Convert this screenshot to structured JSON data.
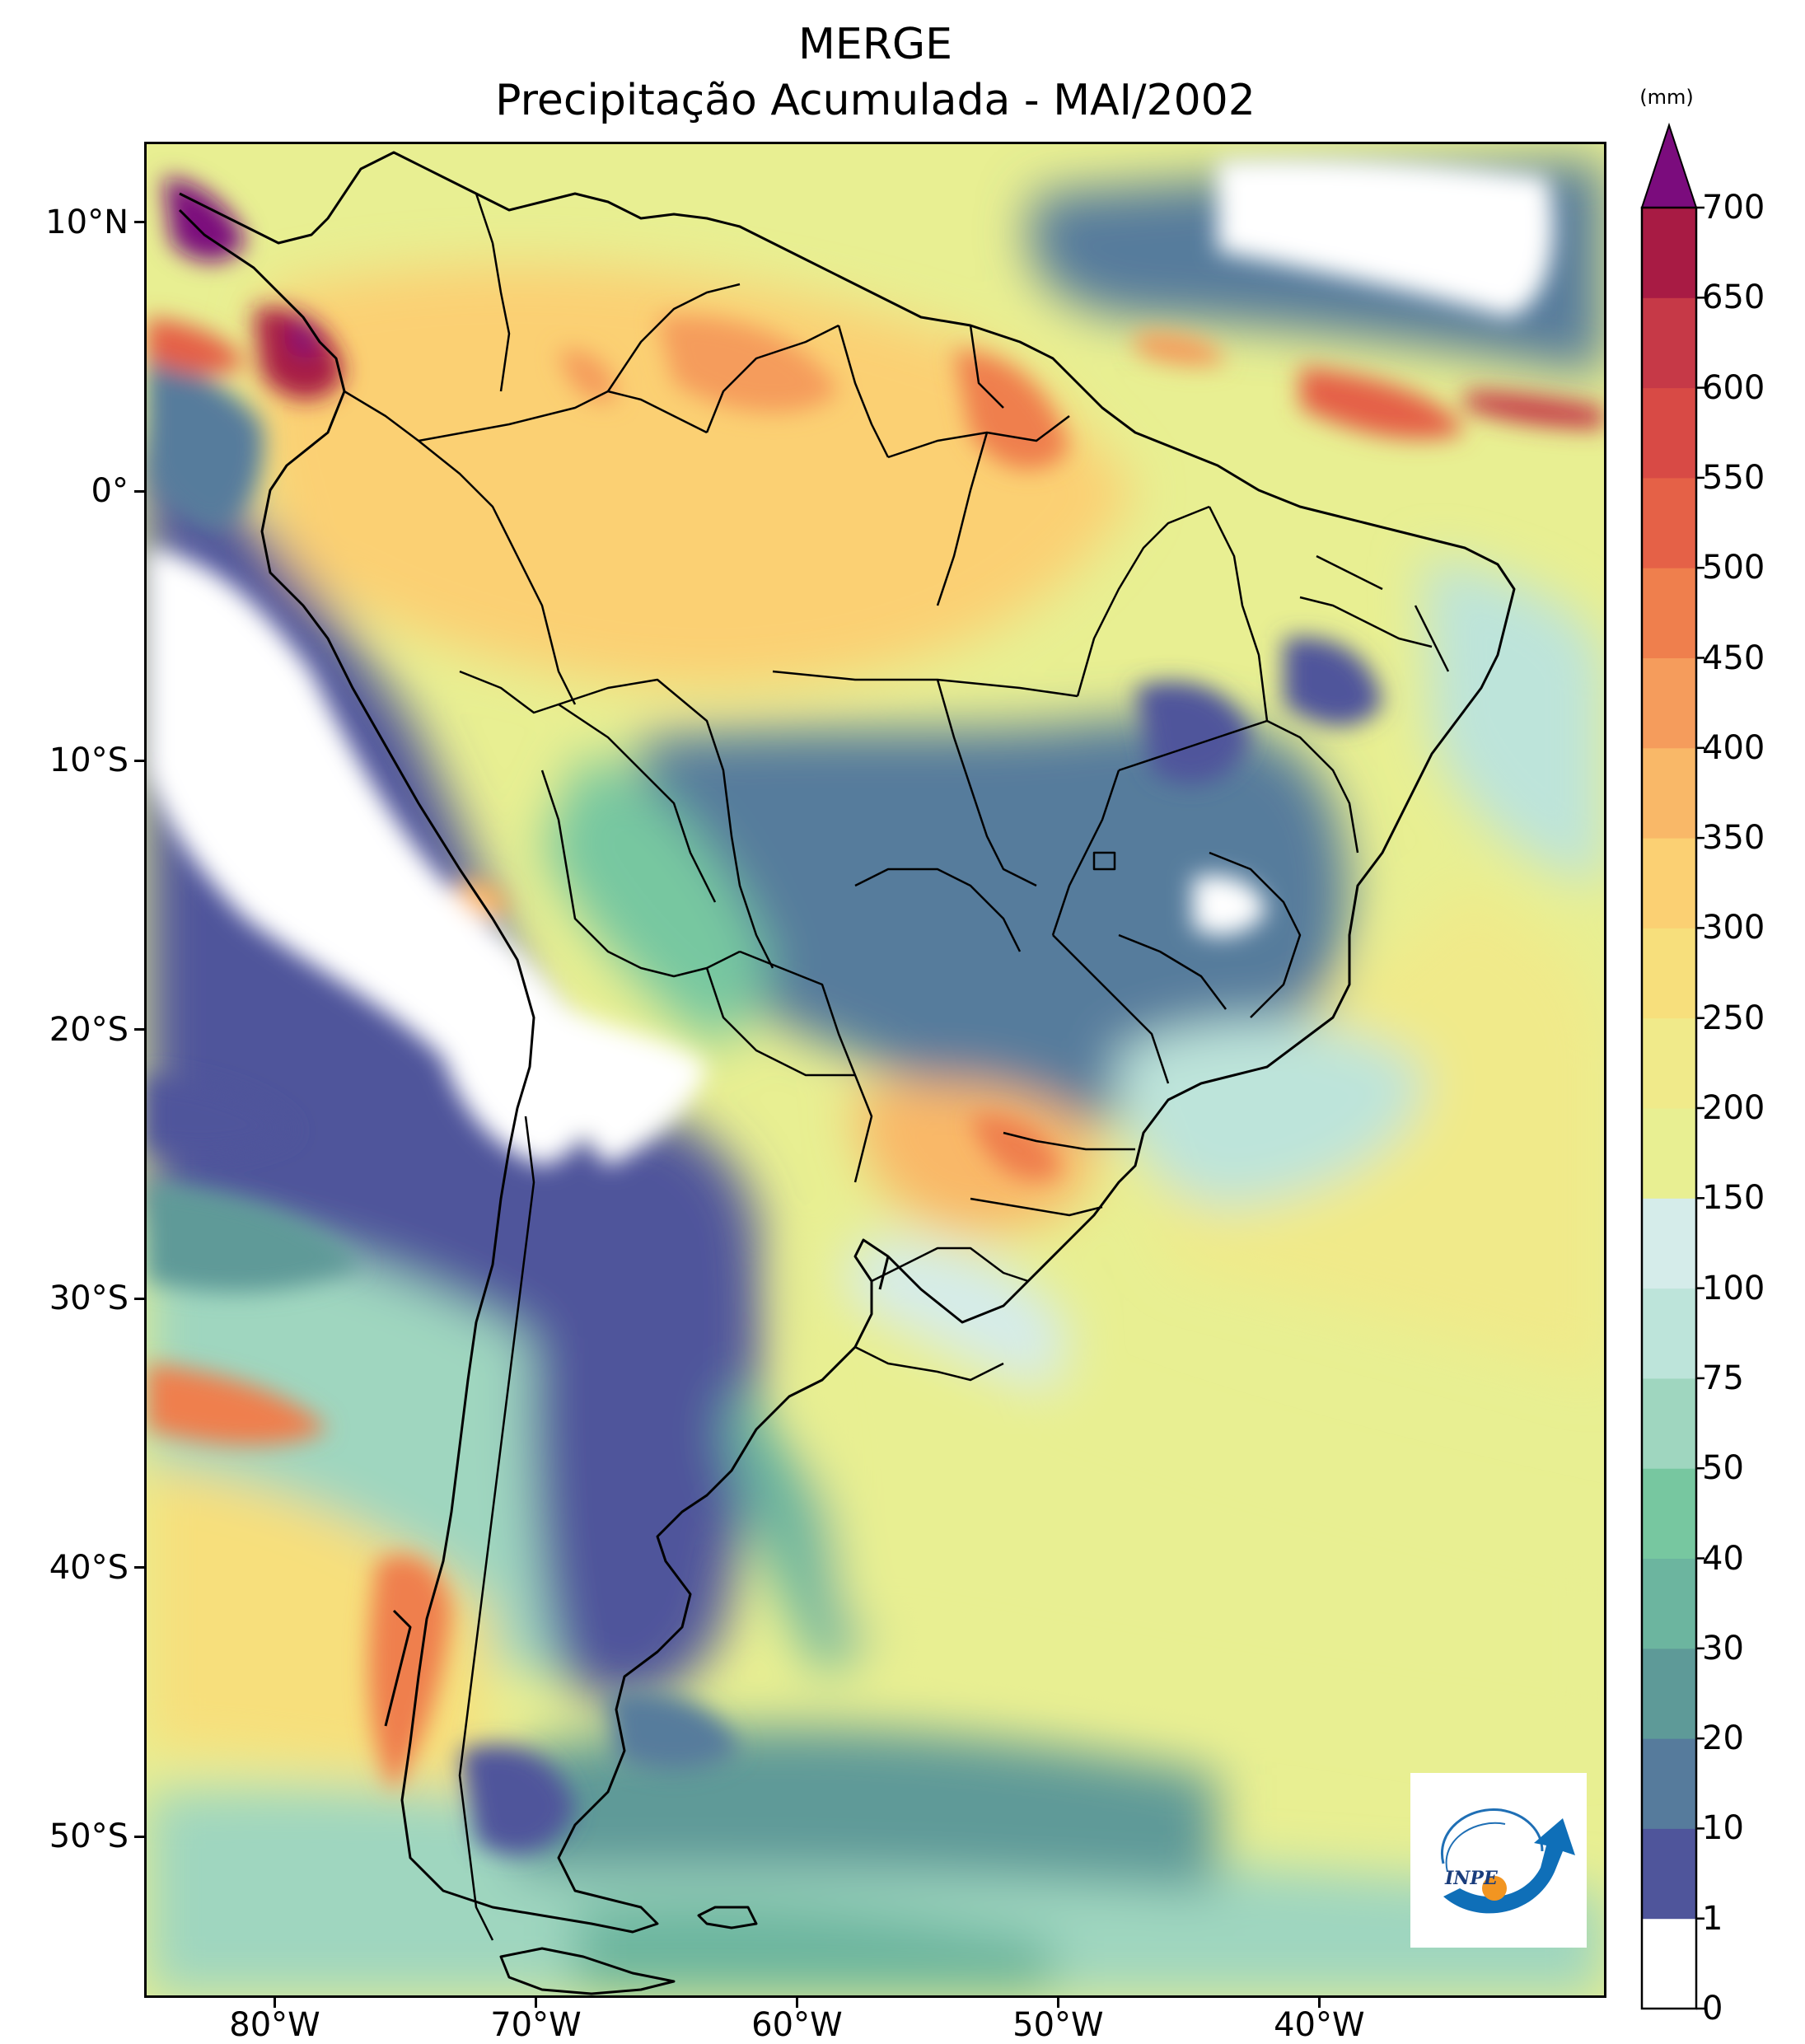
{
  "title": {
    "line1": "MERGE",
    "line2": "Precipitação Acumulada - MAI/2002"
  },
  "map": {
    "lon_range": [
      -85,
      -29
    ],
    "lat_range": [
      -56,
      13
    ],
    "lat_ticks": [
      {
        "value": 10,
        "label": "10°N"
      },
      {
        "value": 0,
        "label": "0°"
      },
      {
        "value": -10,
        "label": "10°S"
      },
      {
        "value": -20,
        "label": "20°S"
      },
      {
        "value": -30,
        "label": "30°S"
      },
      {
        "value": -40,
        "label": "40°S"
      },
      {
        "value": -50,
        "label": "50°S"
      }
    ],
    "lon_ticks": [
      {
        "value": -80,
        "label": "80°W"
      },
      {
        "value": -70,
        "label": "70°W"
      },
      {
        "value": -60,
        "label": "60°W"
      },
      {
        "value": -50,
        "label": "50°W"
      },
      {
        "value": -40,
        "label": "40°W"
      }
    ]
  },
  "colorbar": {
    "unit": "(mm)",
    "levels": [
      0,
      1,
      10,
      20,
      30,
      40,
      50,
      75,
      100,
      150,
      200,
      250,
      300,
      350,
      400,
      450,
      500,
      550,
      600,
      650,
      700
    ],
    "colors": [
      "#ffffff",
      "#4f559b",
      "#567b9c",
      "#5e9a98",
      "#6cb59f",
      "#77c7a0",
      "#9fd6bf",
      "#bde4da",
      "#d5ecea",
      "#e8ef92",
      "#f0ea8a",
      "#f7df7c",
      "#fbd073",
      "#f9b868",
      "#f59c5c",
      "#ef7f4d",
      "#e56147",
      "#d84a45",
      "#c63947",
      "#a81b44"
    ],
    "extend_color": "#7b0c7d",
    "labels": [
      "0",
      "1",
      "10",
      "20",
      "30",
      "40",
      "50",
      "75",
      "100",
      "150",
      "200",
      "250",
      "300",
      "350",
      "400",
      "450",
      "500",
      "550",
      "600",
      "650",
      "700"
    ]
  },
  "logo": {
    "text": "INPE"
  }
}
